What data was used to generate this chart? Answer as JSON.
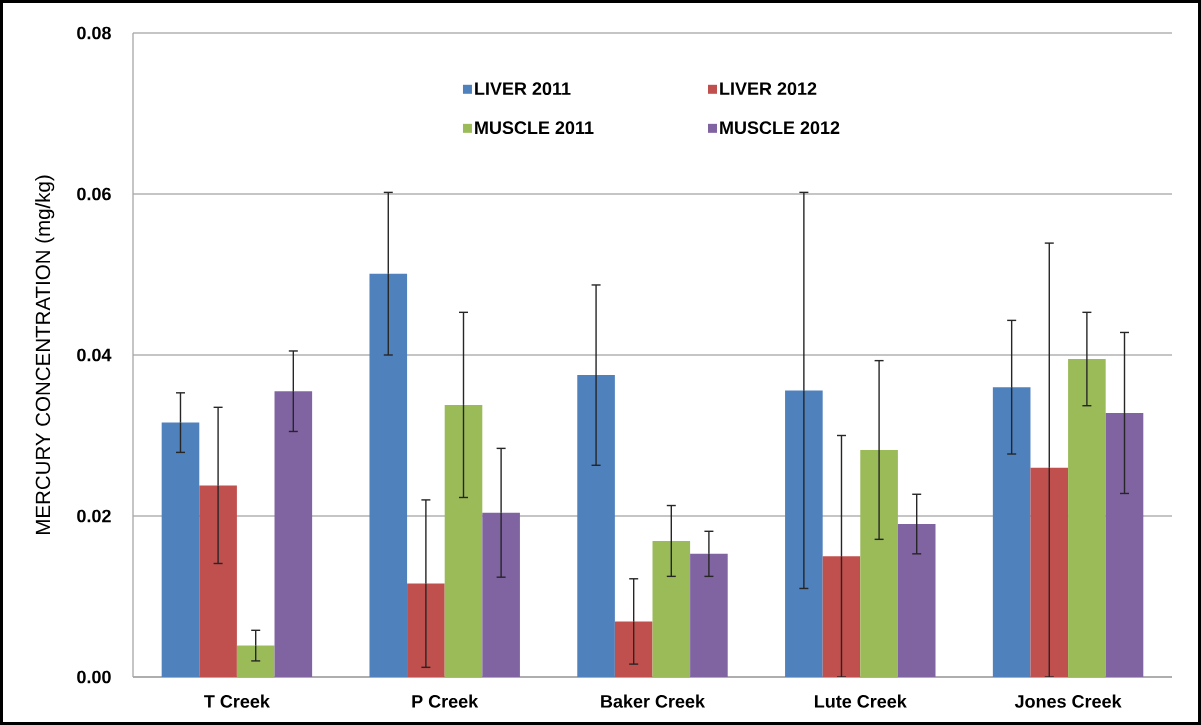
{
  "chart_data": {
    "type": "bar",
    "categories": [
      "T Creek",
      "P Creek",
      "Baker Creek",
      "Lute Creek",
      "Jones Creek"
    ],
    "ylabel": "MERCURY CONCENTRATION (mg/kg)",
    "ylim": [
      0,
      0.08
    ],
    "yticks": [
      {
        "value": 0,
        "label": "0.00"
      },
      0.02,
      0.04,
      0.06,
      0.08
    ],
    "grid": "y",
    "legend": "top",
    "series": [
      {
        "name": "LIVER 2011",
        "color": "#4f81bd",
        "values": [
          0.0316,
          0.0501,
          0.0375,
          0.0356,
          0.036
        ],
        "errors": [
          0.0037,
          0.0101,
          0.0112,
          0.0246,
          0.0083
        ]
      },
      {
        "name": "LIVER 2012",
        "color": "#c0504d",
        "values": [
          0.0238,
          0.0116,
          0.0069,
          0.015,
          0.026
        ],
        "errors": [
          0.0097,
          0.0104,
          0.0053,
          0.015,
          [
            0,
            0.0539
          ]
        ]
      },
      {
        "name": "MUSCLE 2011",
        "color": "#9bbb59",
        "values": [
          0.0039,
          0.0338,
          0.0169,
          0.0282,
          0.0395
        ],
        "errors": [
          0.0019,
          0.0115,
          0.0044,
          0.0111,
          0.0058
        ]
      },
      {
        "name": "MUSCLE 2012",
        "color": "#8064a2",
        "values": [
          0.0355,
          0.0204,
          0.0153,
          0.019,
          0.0328
        ],
        "errors": [
          0.005,
          0.008,
          0.0028,
          0.0037,
          0.01
        ]
      }
    ]
  }
}
